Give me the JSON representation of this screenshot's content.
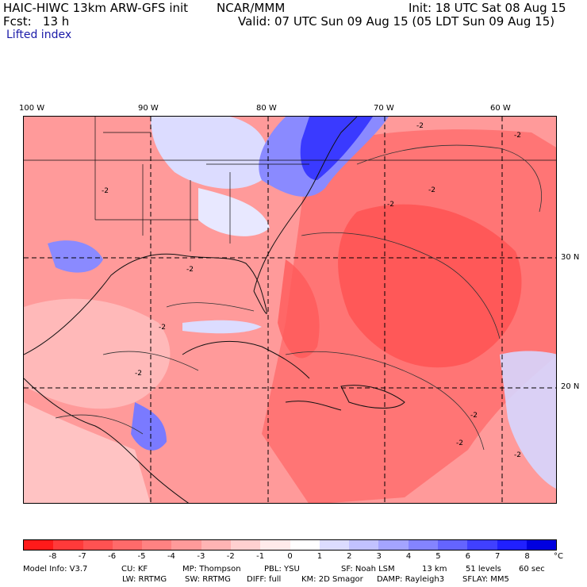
{
  "header": {
    "model": "HAIC-HIWC 13km ARW-GFS init",
    "org": "NCAR/MMM",
    "init": "Init: 18 UTC Sat 08 Aug 15",
    "fcst": "Fcst:   13 h",
    "valid": "Valid: 07 UTC Sun 09 Aug 15 (05 LDT Sun 09 Aug 15)",
    "field": "Lifted index"
  },
  "map": {
    "lon_labels": [
      "100 W",
      "90 W",
      "80 W",
      "70 W",
      "60 W"
    ],
    "lat_labels": [
      "30 N",
      "20 N"
    ],
    "contour_label": "-2"
  },
  "colorbar": {
    "ticks": [
      "-8",
      "-7",
      "-6",
      "-5",
      "-4",
      "-3",
      "-2",
      "-1",
      "0",
      "1",
      "2",
      "3",
      "4",
      "5",
      "6",
      "7",
      "8"
    ],
    "unit": "°C",
    "colors": [
      "#ff1a1a",
      "#ff3a3a",
      "#ff5252",
      "#ff6a6a",
      "#ff8282",
      "#ff9a9a",
      "#ffb4b4",
      "#ffd0d0",
      "#ffeaea",
      "#ffffff",
      "#dcdcff",
      "#c2c2ff",
      "#a4a4ff",
      "#8484ff",
      "#6464ff",
      "#4040ff",
      "#2020ff",
      "#0000e0"
    ]
  },
  "footer": {
    "line1": [
      "Model Info: V3.7",
      "CU: KF",
      "MP: Thompson",
      "PBL: YSU",
      "SF: Noah LSM",
      "13 km",
      "51 levels",
      "60 sec"
    ],
    "line2": [
      "LW: RRTMG",
      "SW: RRTMG",
      "DIFF: full",
      "KM: 2D Smagor",
      "DAMP: Rayleigh3",
      "SFLAY: MM5"
    ]
  }
}
